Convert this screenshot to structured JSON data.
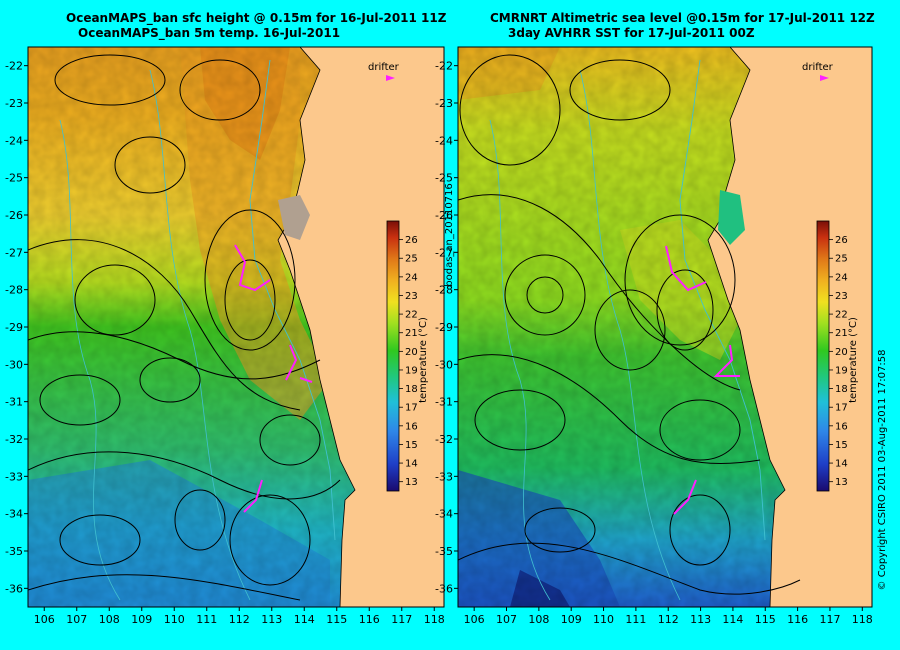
{
  "left_panel": {
    "title_line1": "OceanMAPS_ban sfc height @ 0.15m for 16-Jul-2011 11Z",
    "title_line2": "OceanMAPS_ban 5m temp. 16-Jul-2011",
    "drifter_label": "drifter",
    "colorbar_label": "temperature (°C)"
  },
  "right_panel": {
    "title_line1": "CMRNRT Altimetric sea level  @0.15m  for 17-Jul-2011 12Z",
    "title_line2": "3day AVHRR SST for 17-Jul-2011 00Z",
    "drifter_label": "drifter",
    "colorbar_label": "temperature (°C)"
  },
  "center_label": "bodas_an_20110716",
  "copyright": "© Copyright CSIRO 2011   03-Aug-2011 17:07:58",
  "map_data": {
    "lon_ticks": [
      106,
      107,
      108,
      109,
      110,
      111,
      112,
      113,
      114,
      115,
      116,
      117,
      118
    ],
    "lat_ticks": [
      -22,
      -23,
      -24,
      -25,
      -26,
      -27,
      -28,
      -29,
      -30,
      -31,
      -32,
      -33,
      -34,
      -35,
      -36
    ],
    "lon_range": [
      105.5,
      118.3
    ],
    "lat_range": [
      -21.5,
      -36.5
    ],
    "colorbar_ticks": [
      26,
      25,
      24,
      23,
      22,
      21,
      20,
      19,
      18,
      17,
      16,
      15,
      14,
      13
    ],
    "colorbar_range": [
      12.5,
      27
    ],
    "colormap": [
      "#1a0a6e",
      "#1f3fc8",
      "#2f86e8",
      "#20c0d8",
      "#20c880",
      "#30c820",
      "#a0e020",
      "#f0e020",
      "#f0b020",
      "#e07818",
      "#c83010",
      "#7a1008"
    ],
    "land_color": "#fcc88c",
    "contour_color": "#000000",
    "bathymetry_color": "#40c0d0",
    "drifter_color": "#ff20ff"
  }
}
